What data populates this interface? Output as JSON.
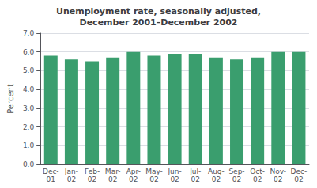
{
  "chart_data": {
    "type": "bar",
    "title": "Unemployment rate, seasonally adjusted,\nDecember 2001–December 2002",
    "ylabel": "Percent",
    "categories": [
      "Dec-\n01",
      "Jan-\n02",
      "Feb-\n02",
      "Mar-\n02",
      "Apr-\n02",
      "May-\n02",
      "Jun-\n02",
      "Jul-\n02",
      "Aug-\n02",
      "Sep-\n02",
      "Oct-\n02",
      "Nov-\n02",
      "Dec-\n02"
    ],
    "values": [
      5.8,
      5.6,
      5.5,
      5.7,
      6.0,
      5.8,
      5.9,
      5.9,
      5.7,
      5.6,
      5.7,
      6.0,
      6.0
    ],
    "color": "#3a9e6e",
    "ylim": [
      0,
      7.0
    ],
    "yticks": [
      {
        "value": 0,
        "label": "0.0"
      },
      {
        "value": 1,
        "label": "1.0"
      },
      {
        "value": 2,
        "label": "2.0"
      },
      {
        "value": 3,
        "label": "3.0"
      },
      {
        "value": 4,
        "label": "4.0"
      },
      {
        "value": 5,
        "label": "5.0"
      },
      {
        "value": 6,
        "label": "6.0"
      },
      {
        "value": 7,
        "label": "7.0"
      }
    ],
    "grid": true
  }
}
